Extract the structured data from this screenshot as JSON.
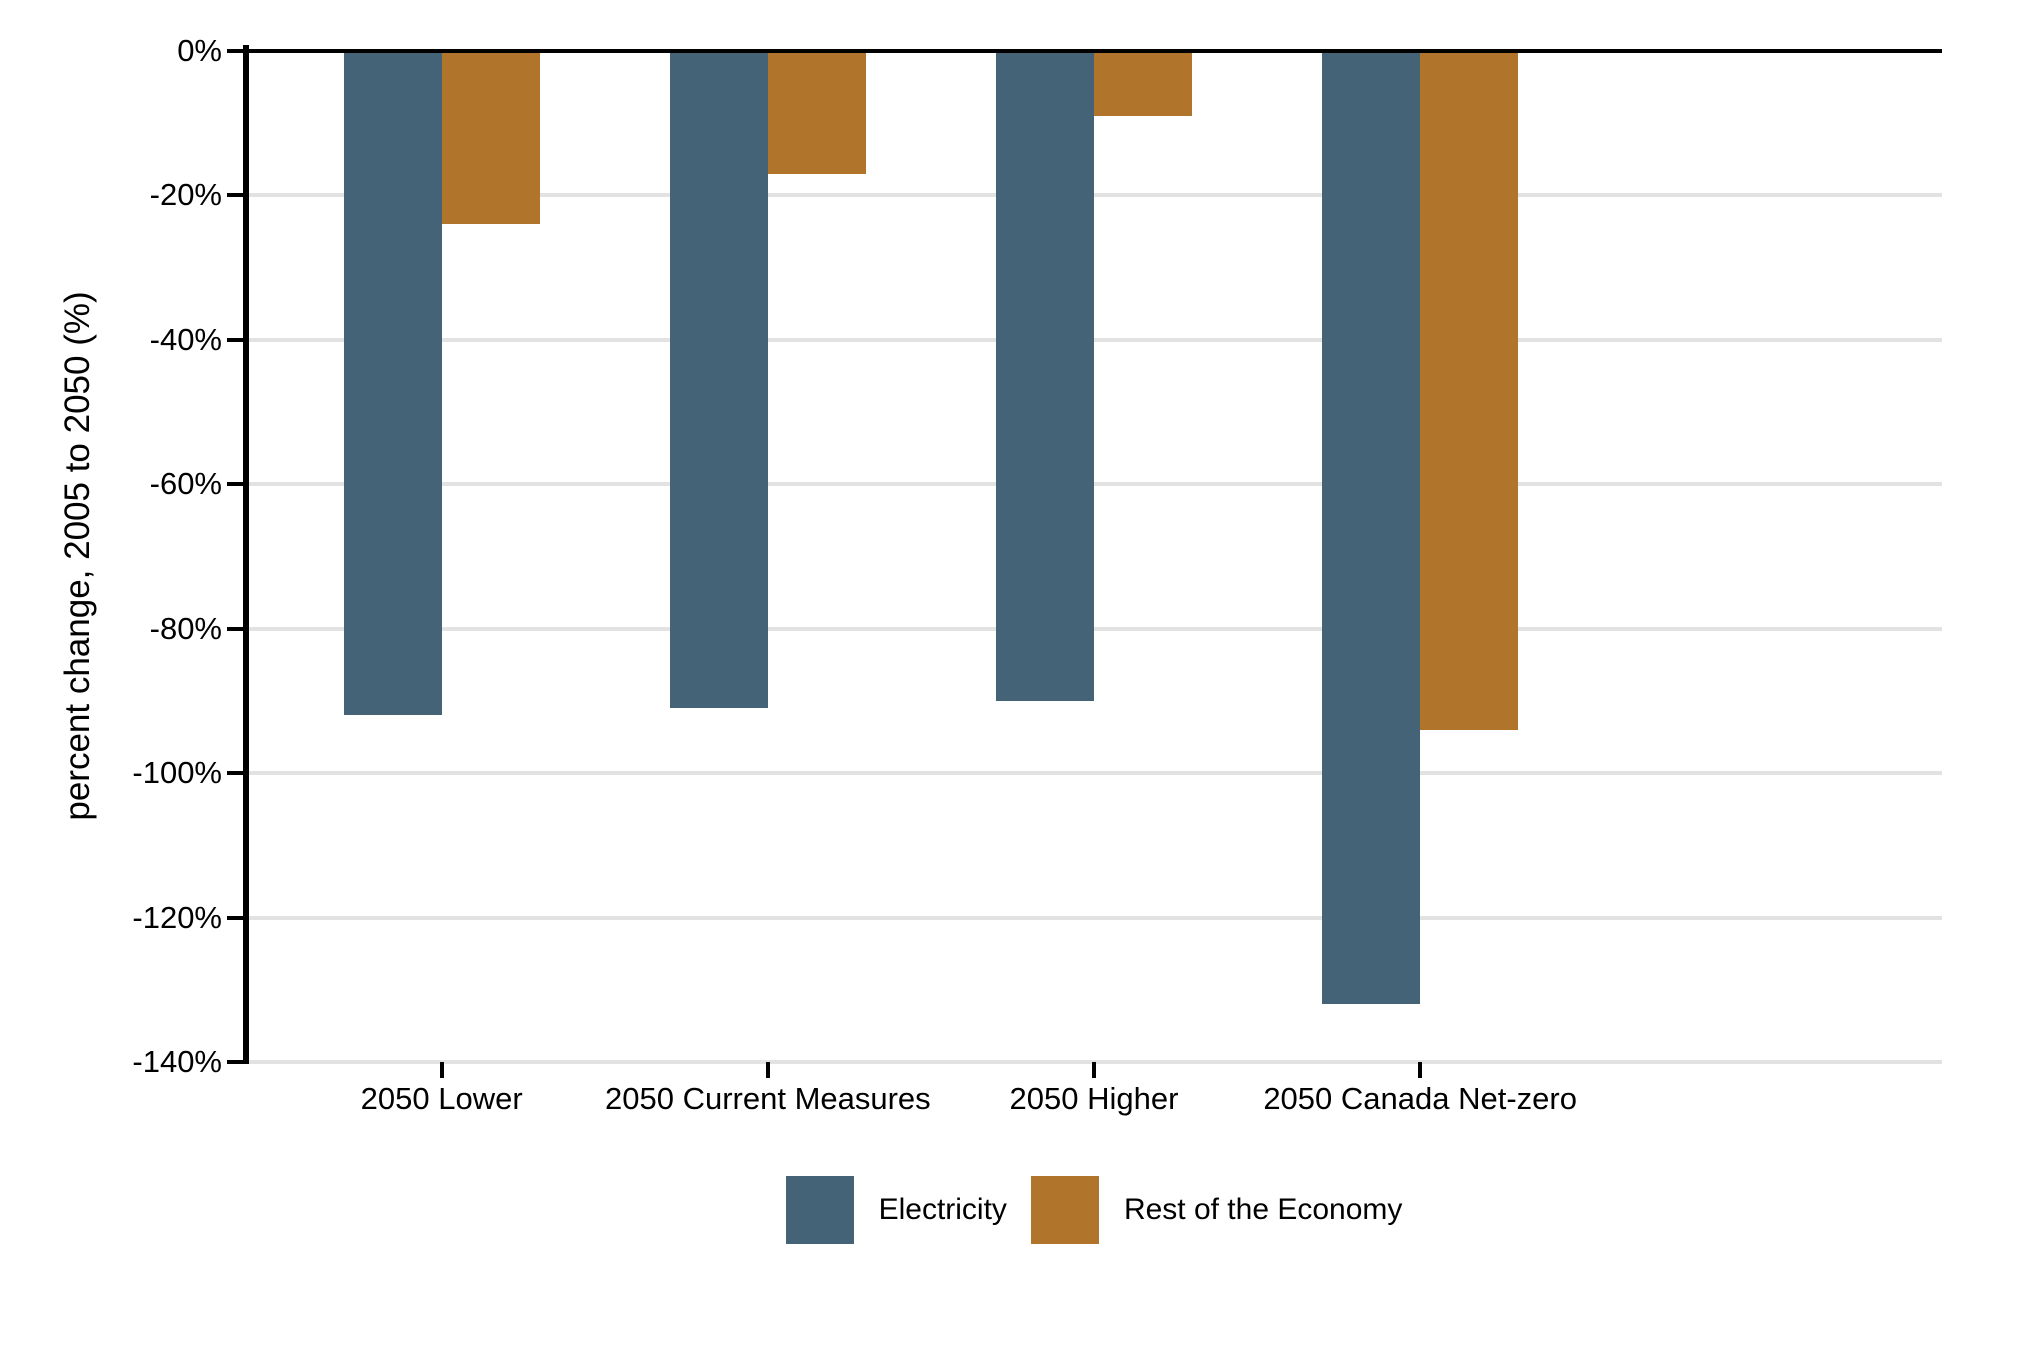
{
  "chart_data": {
    "type": "bar",
    "orientation": "vertical-negative",
    "title": "",
    "xlabel": "",
    "ylabel": "percent change, 2005 to 2050 (%)",
    "categories": [
      "2050 Lower",
      "2050 Current Measures",
      "2050 Higher",
      "2050 Canada Net-zero"
    ],
    "series": [
      {
        "name": "Electricity",
        "color": "#456377",
        "values": [
          -92,
          -91,
          -90,
          -132
        ]
      },
      {
        "name": "Rest of the Economy",
        "color": "#B0752B",
        "values": [
          -24,
          -17,
          -9,
          -94
        ]
      }
    ],
    "ylim": [
      -140,
      0
    ],
    "yticks": [
      0,
      -20,
      -40,
      -60,
      -80,
      -100,
      -120,
      -140
    ],
    "ytick_labels": [
      "0%",
      "-20%",
      "-40%",
      "-60%",
      "-80%",
      "-100%",
      "-120%",
      "-140%"
    ],
    "grid": true,
    "gridline_color": "#e2e2e2",
    "axis_color": "#000000",
    "legend_position": "bottom",
    "legend_items": [
      "Electricity",
      "Rest of the Economy"
    ]
  }
}
